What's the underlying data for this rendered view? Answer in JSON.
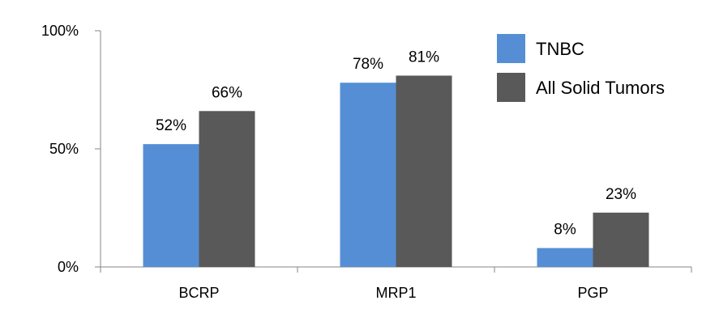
{
  "chart_data": {
    "type": "bar",
    "title": "",
    "xlabel": "",
    "ylabel": "",
    "categories": [
      "BCRP",
      "MRP1",
      "PGP"
    ],
    "series": [
      {
        "name": "TNBC",
        "color": "#558ed5",
        "values": [
          52,
          78,
          8
        ],
        "labels": [
          "52%",
          "78%",
          "8%"
        ]
      },
      {
        "name": "All Solid Tumors",
        "color": "#595959",
        "values": [
          66,
          81,
          23
        ],
        "labels": [
          "66%",
          "81%",
          "23%"
        ]
      }
    ],
    "ylim": [
      0,
      100
    ],
    "yticks": [
      0,
      50,
      100
    ],
    "ytick_labels": [
      "0%",
      "50%",
      "100%"
    ],
    "grid": false,
    "legend_position": "top-right"
  }
}
